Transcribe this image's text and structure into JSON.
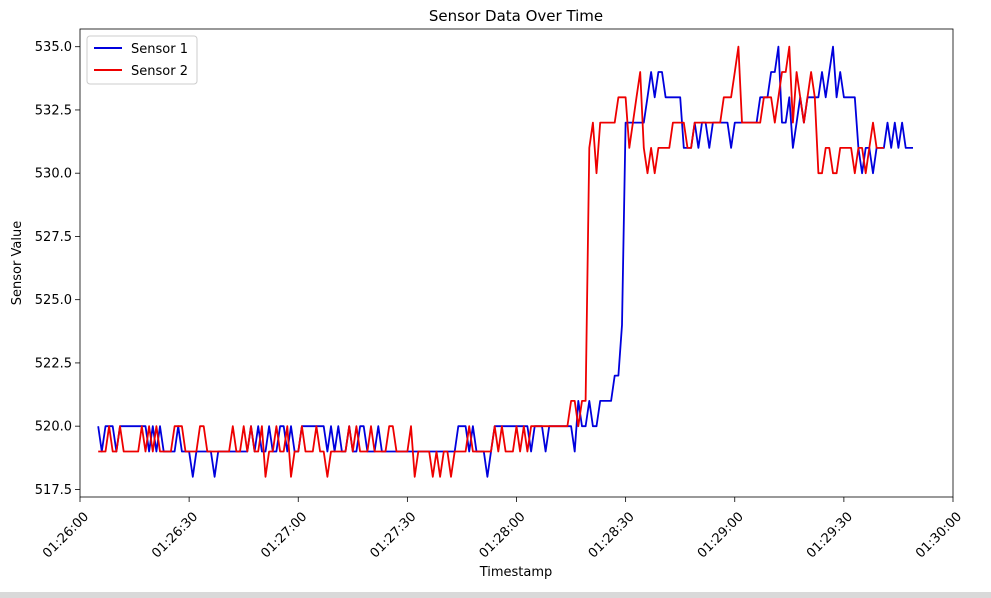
{
  "chart_data": {
    "type": "line",
    "title": "Sensor Data Over Time",
    "xlabel": "Timestamp",
    "ylabel": "Sensor Value",
    "xlim": [
      "01:26:00",
      "01:30:00"
    ],
    "ylim": [
      517.2,
      535.7
    ],
    "x_ticks": [
      "01:26:00",
      "01:26:30",
      "01:27:00",
      "01:27:30",
      "01:28:00",
      "01:28:30",
      "01:29:00",
      "01:29:30",
      "01:30:00"
    ],
    "y_ticks": [
      517.5,
      520.0,
      522.5,
      525.0,
      527.5,
      530.0,
      532.5,
      535.0
    ],
    "y_tick_labels": [
      "517.5",
      "520.0",
      "522.5",
      "525.0",
      "527.5",
      "530.0",
      "532.5",
      "535.0"
    ],
    "legend": "top-left",
    "grid": false,
    "x_start": "01:26:05",
    "x_end": "01:29:48",
    "sample_interval_seconds": 1,
    "series": [
      {
        "name": "Sensor 1",
        "color": "#0000dd",
        "values": [
          520,
          519,
          520,
          520,
          520,
          519,
          520,
          520,
          520,
          520,
          520,
          520,
          520,
          520,
          519,
          520,
          519,
          520,
          519,
          519,
          519,
          519,
          520,
          519,
          519,
          519,
          518,
          519,
          519,
          519,
          519,
          519,
          518,
          519,
          519,
          519,
          519,
          519,
          519,
          519,
          519,
          519,
          520,
          519,
          520,
          519,
          519,
          520,
          519,
          519,
          520,
          520,
          519,
          520,
          519,
          519,
          520,
          520,
          520,
          520,
          520,
          520,
          520,
          519,
          520,
          519,
          520,
          519,
          519,
          520,
          519,
          519,
          520,
          520,
          519,
          519,
          519,
          520,
          519,
          519,
          519,
          519,
          519,
          519,
          519,
          519,
          519,
          519,
          519,
          519,
          519,
          519,
          519,
          519,
          519,
          519,
          519,
          519,
          519,
          520,
          520,
          520,
          519,
          520,
          519,
          519,
          519,
          518,
          519,
          520,
          520,
          520,
          520,
          520,
          520,
          520,
          520,
          520,
          520,
          519,
          520,
          520,
          520,
          519,
          520,
          520,
          520,
          520,
          520,
          520,
          520,
          519,
          521,
          520,
          520,
          521,
          520,
          520,
          521,
          521,
          521,
          521,
          522,
          522,
          524,
          532,
          532,
          532,
          532,
          532,
          532,
          533,
          534,
          533,
          534,
          534,
          533,
          533,
          533,
          533,
          533,
          531,
          531,
          531,
          532,
          531,
          532,
          532,
          531,
          532,
          532,
          532,
          532,
          532,
          531,
          532,
          532,
          532,
          532,
          532,
          532,
          532,
          533,
          533,
          533,
          534,
          534,
          535,
          532,
          532,
          533,
          531,
          532,
          533,
          532,
          533,
          533,
          533,
          533,
          534,
          533,
          534,
          535,
          533,
          534,
          533,
          533,
          533,
          533,
          531,
          530,
          531,
          531,
          530,
          531,
          531,
          531,
          532,
          531,
          532,
          531,
          532,
          531,
          531,
          531
        ],
        "style": "solid"
      },
      {
        "name": "Sensor 2",
        "color": "#ee0000",
        "values": [
          519,
          519,
          519,
          520,
          519,
          519,
          520,
          519,
          519,
          519,
          519,
          519,
          520,
          519,
          520,
          519,
          520,
          519,
          519,
          519,
          519,
          520,
          520,
          520,
          519,
          519,
          519,
          519,
          520,
          520,
          519,
          519,
          519,
          519,
          519,
          519,
          519,
          520,
          519,
          519,
          520,
          519,
          520,
          519,
          519,
          520,
          518,
          519,
          519,
          520,
          519,
          519,
          520,
          518,
          519,
          519,
          520,
          519,
          519,
          519,
          520,
          519,
          519,
          518,
          519,
          519,
          519,
          519,
          519,
          520,
          519,
          520,
          519,
          519,
          519,
          520,
          519,
          519,
          519,
          519,
          520,
          520,
          519,
          519,
          519,
          519,
          520,
          518,
          519,
          519,
          519,
          519,
          518,
          519,
          518,
          519,
          519,
          518,
          519,
          519,
          519,
          519,
          520,
          519,
          519,
          519,
          519,
          519,
          519,
          520,
          519,
          520,
          519,
          519,
          519,
          520,
          519,
          520,
          519,
          520,
          520,
          520,
          520,
          520,
          520,
          520,
          520,
          520,
          520,
          520,
          521,
          521,
          520,
          521,
          521,
          531,
          532,
          530,
          532,
          532,
          532,
          532,
          532,
          533,
          533,
          533,
          531,
          532,
          533,
          534,
          531,
          530,
          531,
          530,
          531,
          531,
          531,
          531,
          532,
          532,
          532,
          532,
          531,
          531,
          532,
          532,
          532,
          532,
          532,
          532,
          532,
          532,
          533,
          533,
          533,
          534,
          535,
          532,
          532,
          532,
          532,
          532,
          532,
          533,
          533,
          533,
          532,
          533,
          534,
          534,
          535,
          532,
          534,
          533,
          532,
          533,
          534,
          533,
          530,
          530,
          531,
          531,
          530,
          530,
          531,
          531,
          531,
          531,
          530,
          531,
          531,
          530,
          531,
          532,
          531,
          531,
          531
        ]
      }
    ]
  }
}
